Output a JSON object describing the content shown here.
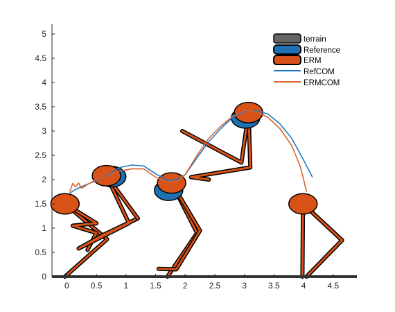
{
  "chart_data": {
    "type": "line",
    "xlim": [
      -0.25,
      4.9
    ],
    "ylim": [
      0,
      5.2
    ],
    "xticks": [
      "0",
      "0.5",
      "1",
      "1.5",
      "2",
      "2.5",
      "3",
      "3.5",
      "4",
      "4.5"
    ],
    "xtick_values": [
      0,
      0.5,
      1,
      1.5,
      2,
      2.5,
      3,
      3.5,
      4,
      4.5
    ],
    "yticks": [
      "0",
      "0.5",
      "1",
      "1.5",
      "2",
      "2.5",
      "3",
      "3.5",
      "4",
      "4.5",
      "5"
    ],
    "ytick_values": [
      0,
      0.5,
      1,
      1.5,
      2,
      2.5,
      3,
      3.5,
      4,
      4.5,
      5
    ],
    "legend_position": "top-right",
    "colors": {
      "terrain": "#666666",
      "reference": "#1f6fb4",
      "erm": "#d95319",
      "refcom": "#1f77c4",
      "ermcom": "#d9622b"
    },
    "legend": [
      "terrain",
      "Reference",
      "ERM",
      "RefCOM",
      "ERMCOM"
    ],
    "series": [
      {
        "name": "RefCOM",
        "x": [
          0.05,
          0.15,
          0.3,
          0.5,
          0.7,
          0.9,
          1.1,
          1.3,
          1.5,
          1.7,
          1.85,
          2.0,
          2.2,
          2.4,
          2.6,
          2.8,
          3.0,
          3.2,
          3.4,
          3.6,
          3.8,
          4.0,
          4.15
        ],
        "y": [
          1.72,
          1.8,
          1.88,
          1.98,
          2.1,
          2.25,
          2.3,
          2.28,
          2.12,
          1.98,
          2.0,
          2.1,
          2.45,
          2.78,
          3.05,
          3.28,
          3.4,
          3.42,
          3.35,
          3.15,
          2.85,
          2.4,
          2.05
        ]
      },
      {
        "name": "ERMCOM",
        "x": [
          0.05,
          0.1,
          0.15,
          0.2,
          0.25,
          0.35,
          0.5,
          0.7,
          0.9,
          1.1,
          1.3,
          1.5,
          1.7,
          1.85,
          2.0,
          2.2,
          2.4,
          2.6,
          2.8,
          3.0,
          3.2,
          3.4,
          3.6,
          3.8,
          3.95,
          4.05
        ],
        "y": [
          1.75,
          1.92,
          1.85,
          1.93,
          1.82,
          1.9,
          2.0,
          2.08,
          2.18,
          2.22,
          2.22,
          2.05,
          1.95,
          1.96,
          2.1,
          2.5,
          2.85,
          3.1,
          3.3,
          3.42,
          3.4,
          3.28,
          3.05,
          2.7,
          2.25,
          1.75
        ]
      }
    ],
    "bodies": [
      {
        "name": "ERM",
        "x": -0.03,
        "y": 1.5,
        "radius": 0.24,
        "leg": [
          [
            -0.03,
            1.5
          ],
          [
            0.68,
            0.77
          ],
          [
            -0.03,
            0
          ]
        ],
        "arm": [
          [
            -0.03,
            1.5
          ],
          [
            0.5,
            1.1
          ],
          [
            0.1,
            1.05
          ],
          [
            0.5,
            0.9
          ],
          [
            0.35,
            0.55
          ]
        ]
      },
      {
        "name": "Reference",
        "x": 0.76,
        "y": 2.06,
        "radius": 0.24
      },
      {
        "name": "ERM",
        "x": 0.67,
        "y": 2.08,
        "radius": 0.24,
        "leg": [
          [
            0.67,
            2.08
          ],
          [
            1.05,
            1.1
          ],
          [
            0.2,
            0.58
          ],
          [
            0.6,
            0.85
          ],
          [
            1.2,
            1.2
          ]
        ],
        "arm": [
          [
            0.67,
            2.08
          ],
          [
            1.2,
            1.2
          ]
        ]
      },
      {
        "name": "Reference",
        "x": 1.72,
        "y": 1.78,
        "radius": 0.24
      },
      {
        "name": "ERM",
        "x": 1.77,
        "y": 1.93,
        "radius": 0.24,
        "leg": [
          [
            1.77,
            1.93
          ],
          [
            2.2,
            0.9
          ],
          [
            1.7,
            0.0
          ]
        ],
        "arm": [
          [
            1.77,
            1.93
          ],
          [
            2.25,
            0.95
          ],
          [
            1.85,
            0.15
          ],
          [
            1.55,
            0.16
          ]
        ]
      },
      {
        "name": "Reference",
        "x": 3.02,
        "y": 3.27,
        "radius": 0.24
      },
      {
        "name": "ERM",
        "x": 3.07,
        "y": 3.38,
        "radius": 0.24,
        "leg": [
          [
            3.07,
            3.38
          ],
          [
            3.1,
            2.25
          ],
          [
            2.1,
            2.05
          ],
          [
            2.4,
            2.0
          ]
        ],
        "arm": [
          [
            3.07,
            3.38
          ],
          [
            2.95,
            2.35
          ],
          [
            1.95,
            3.0
          ]
        ]
      },
      {
        "name": "ERM",
        "x": 3.99,
        "y": 1.5,
        "radius": 0.24,
        "leg": [
          [
            3.99,
            1.5
          ],
          [
            4.65,
            0.75
          ],
          [
            4.05,
            0
          ]
        ],
        "arm": [
          [
            3.99,
            1.5
          ],
          [
            3.98,
            0
          ]
        ]
      }
    ]
  }
}
